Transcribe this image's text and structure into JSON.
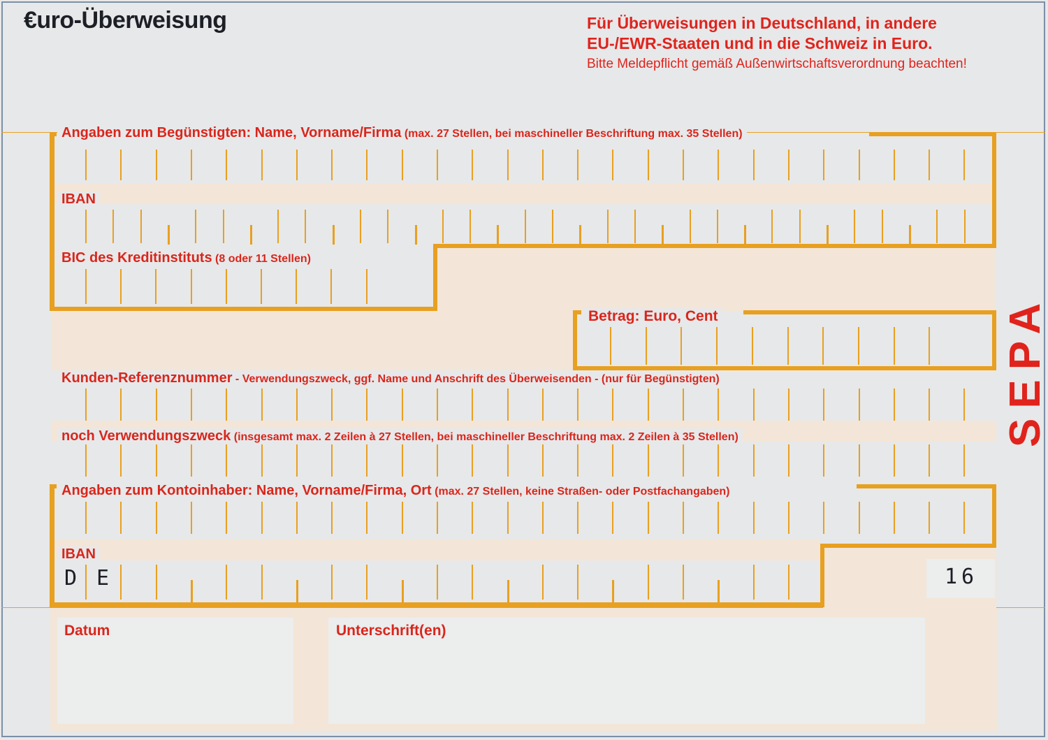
{
  "header": {
    "title": "€uro-Überweisung",
    "notice_line1": "Für Überweisungen in Deutschland, in andere",
    "notice_line2": "EU-/EWR-Staaten und in die Schweiz in Euro.",
    "notice_line3": "Bitte Meldepflicht gemäß Außenwirtschaftsverordnung beachten!"
  },
  "fields": {
    "beneficiary": {
      "label_bold": "Angaben zum Begünstigten:",
      "label_main": " Name, Vorname/Firma",
      "label_small": " (max. 27 Stellen, bei maschineller Beschriftung max. 35 Stellen)",
      "value": ""
    },
    "iban": {
      "label": "IBAN",
      "value": ""
    },
    "bic": {
      "label_main": "BIC des Kreditinstituts",
      "label_small": " (8 oder 11 Stellen)",
      "value": ""
    },
    "amount": {
      "label": "Betrag: Euro, Cent",
      "value": ""
    },
    "reference": {
      "label_main": "Kunden-Referenznummer",
      "label_small": " - Verwendungszweck, ggf. Name und Anschrift des Überweisenden - (nur für Begünstigten)",
      "value": ""
    },
    "purpose2": {
      "label_main": "noch Verwendungszweck",
      "label_small": " (insgesamt max. 2 Zeilen à 27 Stellen, bei maschineller Beschriftung max. 2 Zeilen à 35 Stellen)",
      "value": ""
    },
    "account_holder": {
      "label_bold": "Angaben zum Kontoinhaber:",
      "label_main": " Name, Vorname/Firma, Ort",
      "label_small": " (max. 27 Stellen, keine Straßen- oder Postfachangaben)",
      "value": ""
    },
    "payer_iban": {
      "label": "IBAN",
      "prefix_1": "D",
      "prefix_2": "E",
      "value": "",
      "code": "16"
    },
    "date": {
      "label": "Datum",
      "value": ""
    },
    "signature": {
      "label": "Unterschrift(en)",
      "value": ""
    }
  },
  "side_mark": "SEPA",
  "colors": {
    "orange": "#e8a020",
    "red": "#d9261c",
    "beige": "#f3e6d8",
    "dark": "#1d1f27"
  }
}
